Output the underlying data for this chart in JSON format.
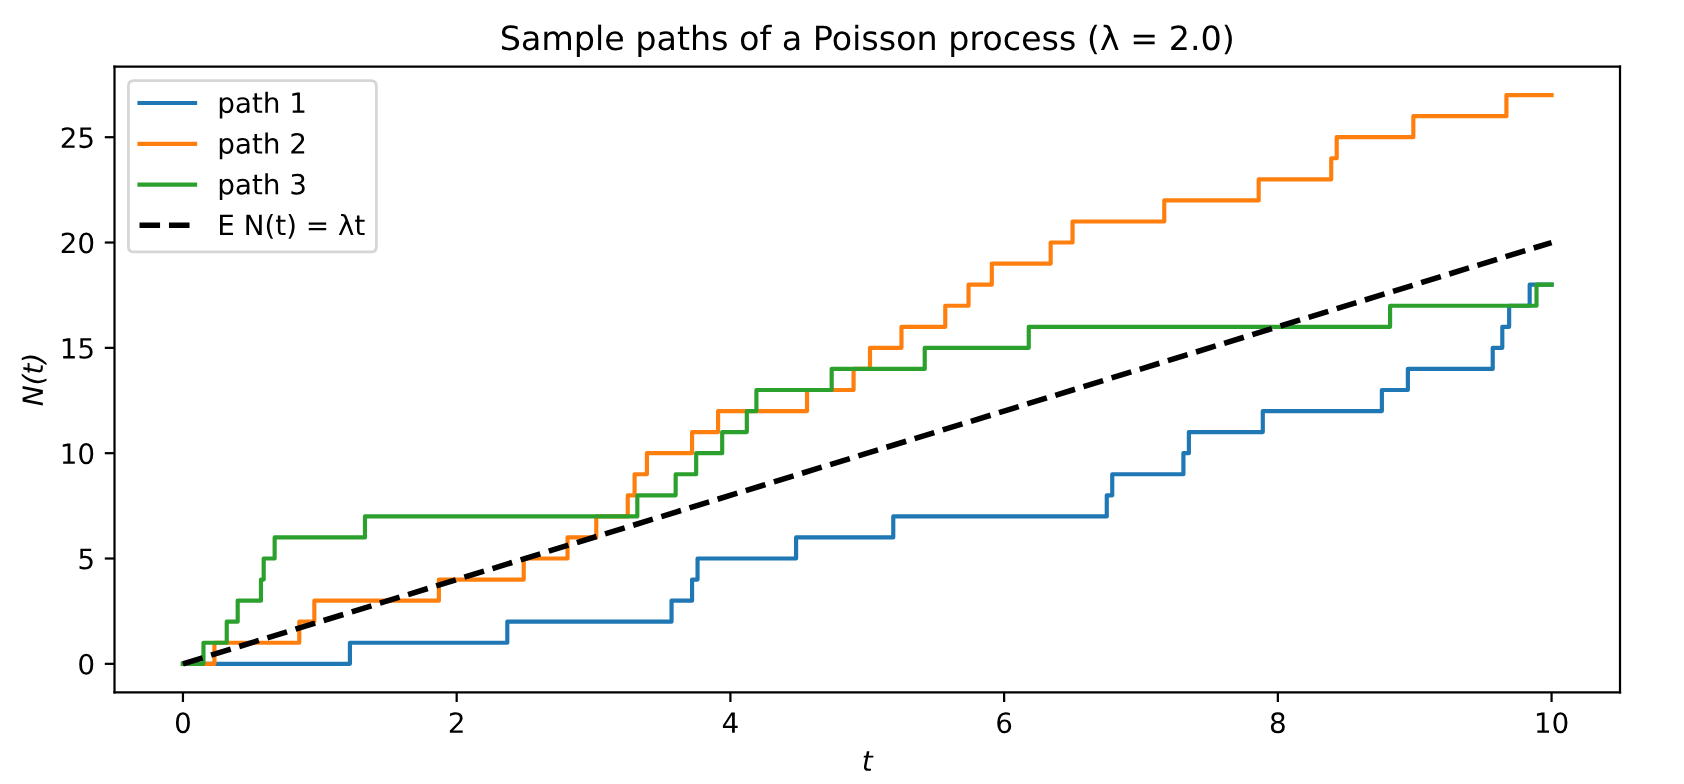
{
  "chart_data": {
    "type": "step",
    "title": "Sample paths of a Poisson process (λ = 2.0)",
    "xlabel": "t",
    "ylabel": "N(t)",
    "series": [
      {
        "name": "path 1",
        "color": "#1f77b4",
        "x": [
          0,
          1.22,
          2.37,
          3.57,
          3.72,
          3.76,
          4.48,
          5.19,
          6.75,
          6.79,
          7.31,
          7.35,
          7.89,
          8.76,
          8.95,
          9.57,
          9.64,
          9.69,
          9.84,
          10
        ],
        "values": [
          0,
          1,
          2,
          3,
          4,
          5,
          6,
          7,
          8,
          9,
          10,
          11,
          12,
          13,
          14,
          15,
          16,
          17,
          18,
          18
        ]
      },
      {
        "name": "path 2",
        "color": "#ff7f0e",
        "x": [
          0,
          0.23,
          0.85,
          0.96,
          1.87,
          2.49,
          2.81,
          3.02,
          3.25,
          3.3,
          3.39,
          3.72,
          3.91,
          4.56,
          4.9,
          5.02,
          5.25,
          5.57,
          5.74,
          5.91,
          6.34,
          6.5,
          7.17,
          7.86,
          8.39,
          8.43,
          8.99,
          9.67,
          10
        ],
        "values": [
          0,
          1,
          2,
          3,
          4,
          5,
          6,
          7,
          8,
          9,
          10,
          11,
          12,
          13,
          14,
          15,
          16,
          17,
          18,
          19,
          20,
          21,
          22,
          23,
          24,
          25,
          26,
          27,
          27
        ]
      },
      {
        "name": "path 3",
        "color": "#2ca02c",
        "x": [
          0,
          0.15,
          0.32,
          0.4,
          0.57,
          0.59,
          0.67,
          1.33,
          3.32,
          3.6,
          3.75,
          3.94,
          4.12,
          4.19,
          4.74,
          5.42,
          6.18,
          8.82,
          9.89,
          10
        ],
        "values": [
          0,
          1,
          2,
          3,
          4,
          5,
          6,
          7,
          8,
          9,
          10,
          11,
          12,
          13,
          14,
          15,
          16,
          17,
          18,
          18
        ]
      },
      {
        "name": "E N(t) = λt",
        "type": "line",
        "color": "#000000",
        "line_style": "dashed",
        "x": [
          0,
          10
        ],
        "values": [
          0,
          20
        ]
      }
    ],
    "xlim": [
      -0.5,
      10.5
    ],
    "ylim": [
      -1.35,
      28.35
    ],
    "xticks": [
      0,
      2,
      4,
      6,
      8,
      10
    ],
    "yticks": [
      0,
      5,
      10,
      15,
      20,
      25
    ],
    "grid": false,
    "legend": "top left"
  }
}
